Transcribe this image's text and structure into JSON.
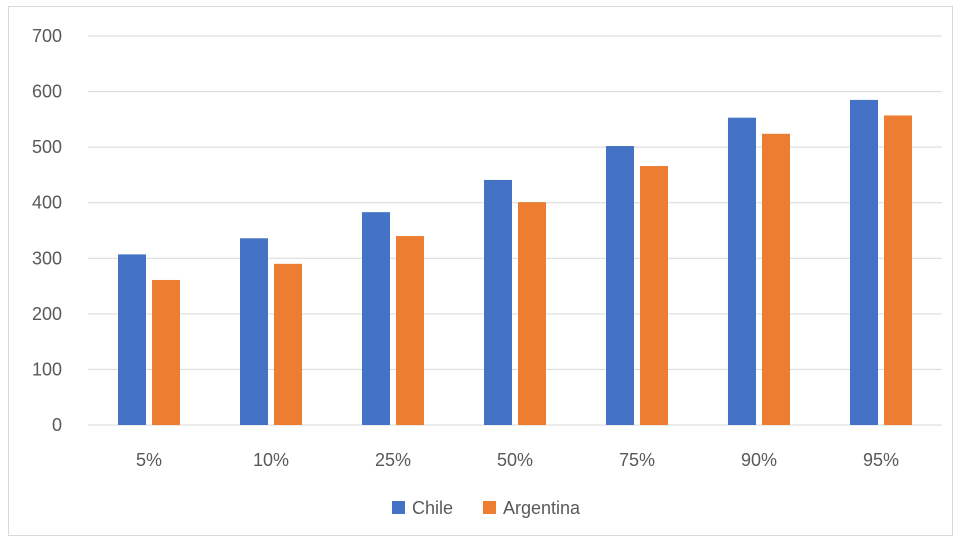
{
  "chart_data": {
    "type": "bar",
    "title": "",
    "xlabel": "",
    "ylabel": "",
    "categories": [
      "5%",
      "10%",
      "25%",
      "50%",
      "75%",
      "90%",
      "95%"
    ],
    "series": [
      {
        "name": "Chile",
        "values": [
          307,
          336,
          383,
          441,
          502,
          553,
          585
        ],
        "color": "#4472C4"
      },
      {
        "name": "Argentina",
        "values": [
          261,
          290,
          340,
          401,
          466,
          524,
          557
        ],
        "color": "#ED7D31"
      }
    ],
    "ylim": [
      0,
      700
    ],
    "yticks": [
      0,
      100,
      200,
      300,
      400,
      500,
      600,
      700
    ],
    "grid": true,
    "legend": "bottom"
  }
}
